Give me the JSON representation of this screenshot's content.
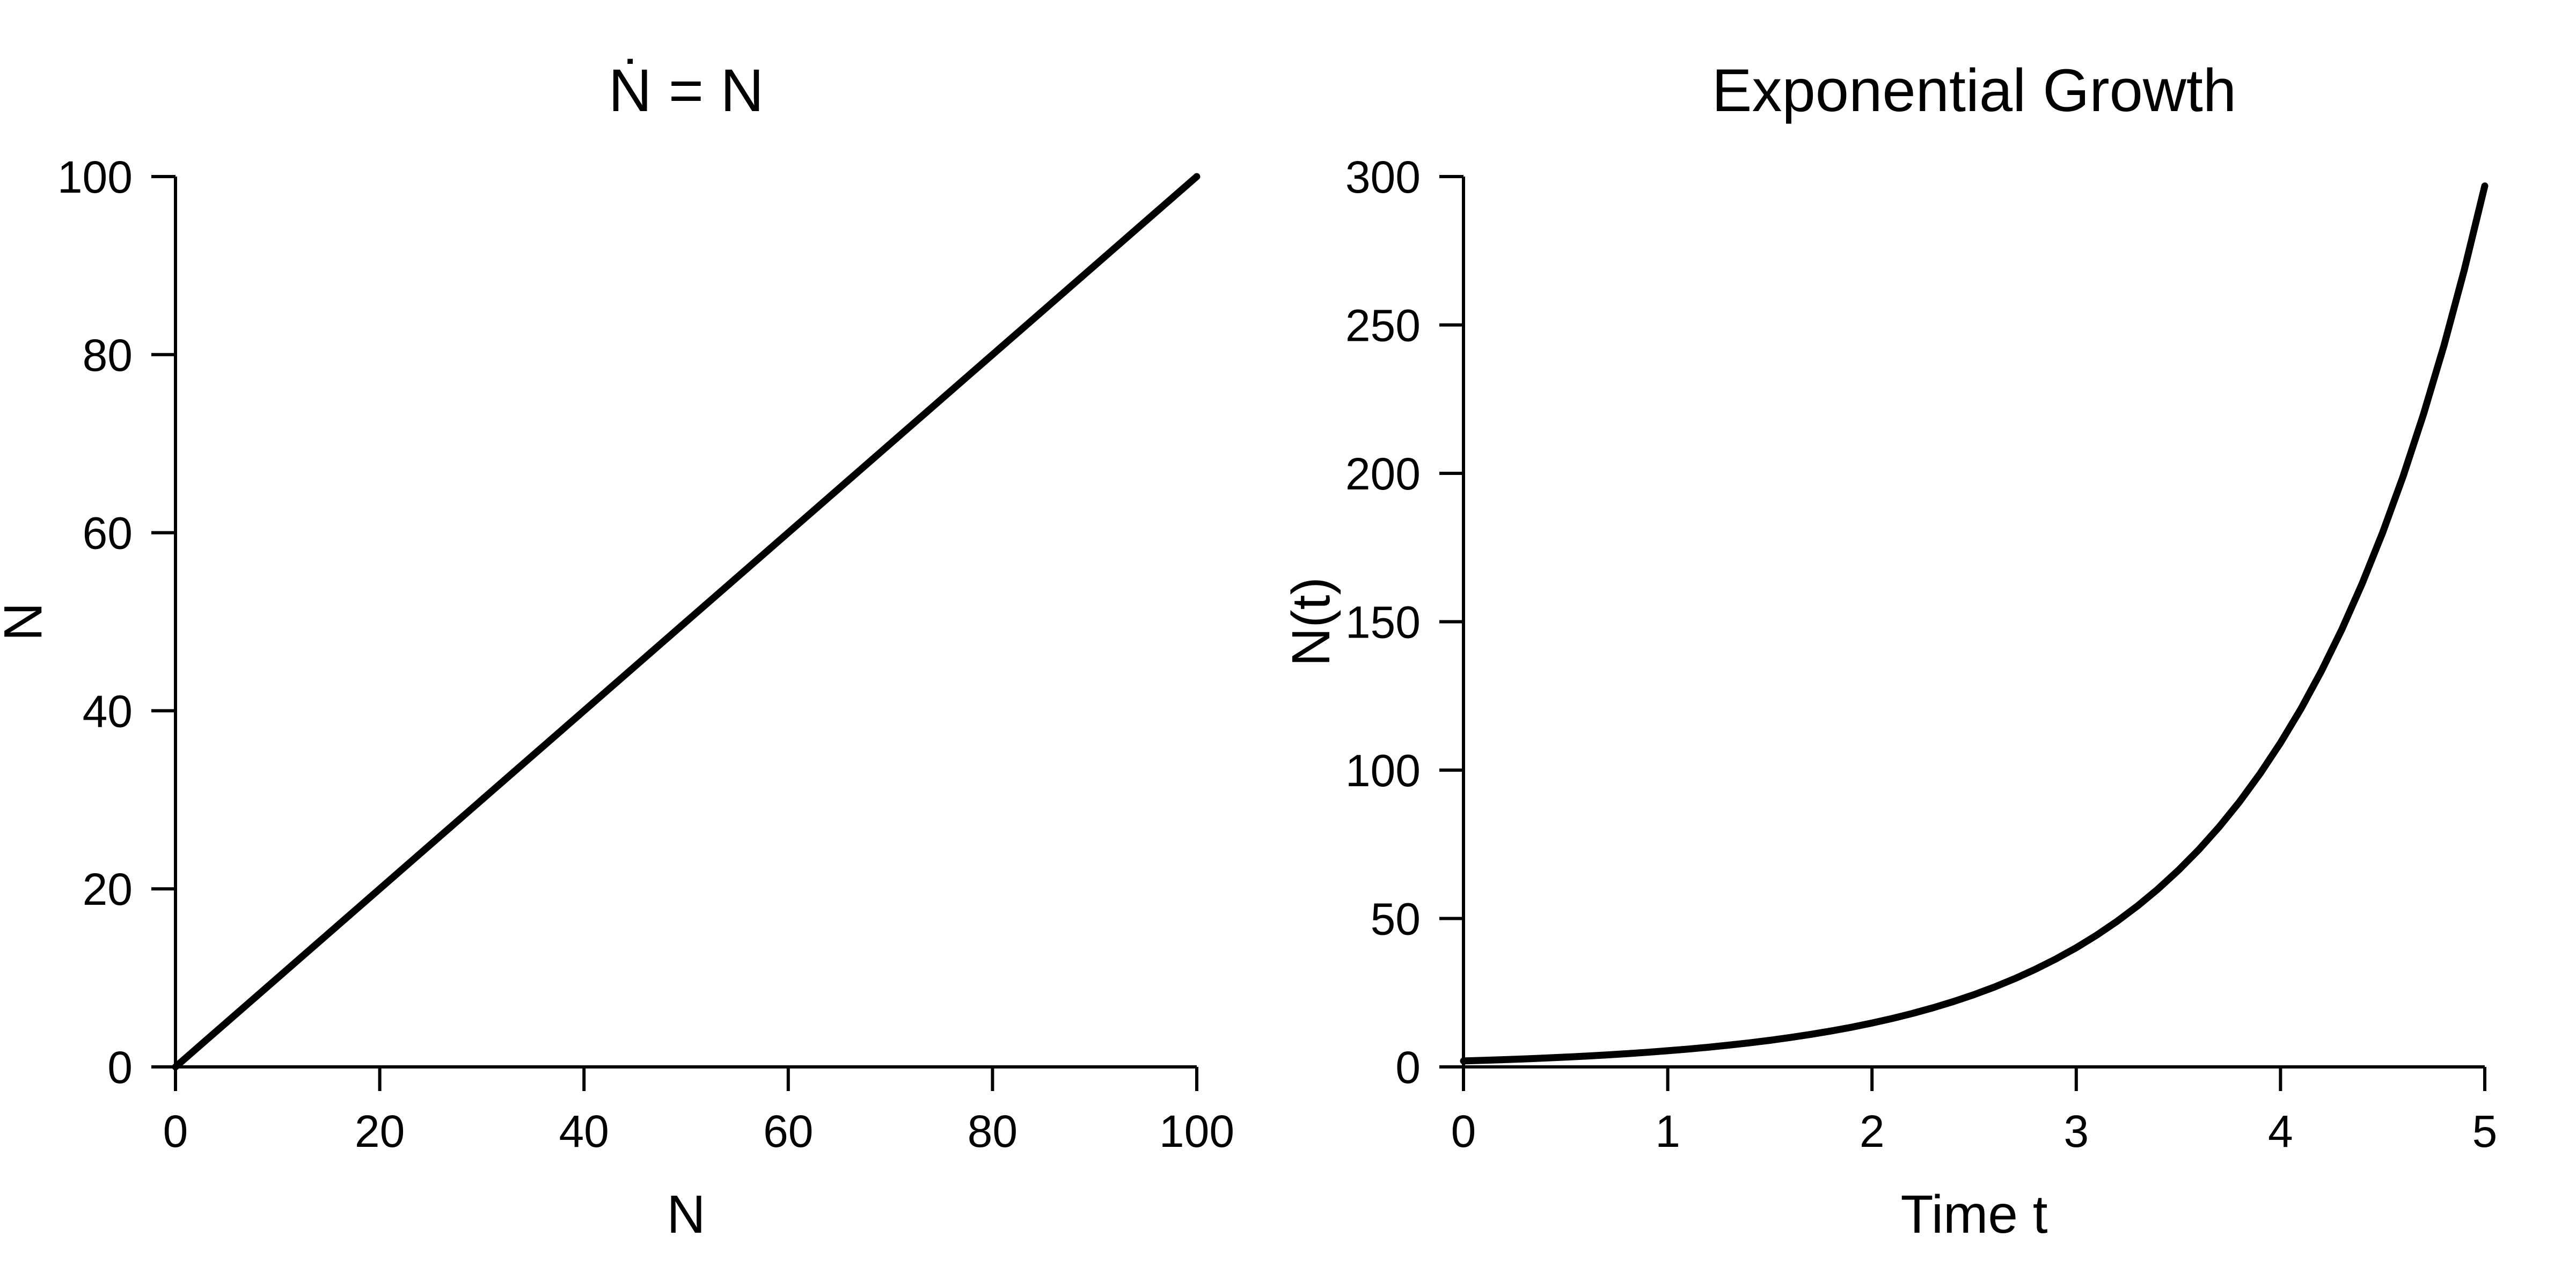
{
  "page": {
    "background": "#ffffff",
    "foreground": "#000000"
  },
  "chart_data": [
    {
      "type": "line",
      "title": "Ṅ = N",
      "xlabel": "N",
      "ylabel": "Ṅ",
      "xlim": [
        0,
        100
      ],
      "ylim": [
        0,
        100
      ],
      "xticks": [
        0,
        20,
        40,
        60,
        80,
        100
      ],
      "yticks": [
        0,
        20,
        40,
        60,
        80,
        100
      ],
      "grid": false,
      "legend": null,
      "color": "#000000",
      "series": [
        {
          "name": "Ndot-equals-N-line",
          "x": [
            0,
            100
          ],
          "y": [
            0,
            100
          ]
        }
      ]
    },
    {
      "type": "line",
      "title": "Exponential Growth",
      "xlabel": "Time t",
      "ylabel": "N(t)",
      "xlim": [
        0,
        5
      ],
      "ylim": [
        0,
        300
      ],
      "xticks": [
        0,
        1,
        2,
        3,
        4,
        5
      ],
      "yticks": [
        0,
        50,
        100,
        150,
        200,
        250,
        300
      ],
      "grid": false,
      "legend": null,
      "color": "#000000",
      "series": [
        {
          "name": "N-of-t-exponential-curve",
          "x": [
            0,
            0.1,
            0.2,
            0.3,
            0.4,
            0.5,
            0.6,
            0.7,
            0.8,
            0.9,
            1.0,
            1.1,
            1.2,
            1.3,
            1.4,
            1.5,
            1.6,
            1.7,
            1.8,
            1.9,
            2.0,
            2.1,
            2.2,
            2.3,
            2.4,
            2.5,
            2.6,
            2.7,
            2.8,
            2.9,
            3.0,
            3.1,
            3.2,
            3.3,
            3.4,
            3.5,
            3.6,
            3.7,
            3.8,
            3.9,
            4.0,
            4.1,
            4.2,
            4.3,
            4.4,
            4.5,
            4.6,
            4.7,
            4.8,
            4.9,
            5.0
          ],
          "y": [
            2.0,
            2.21,
            2.44,
            2.7,
            2.98,
            3.3,
            3.64,
            4.03,
            4.45,
            4.92,
            5.44,
            6.01,
            6.64,
            7.34,
            8.11,
            8.96,
            9.91,
            10.95,
            12.1,
            13.37,
            14.78,
            16.33,
            18.05,
            19.95,
            22.05,
            24.36,
            26.93,
            29.76,
            32.89,
            36.35,
            40.17,
            44.4,
            49.06,
            54.23,
            59.93,
            66.23,
            73.2,
            80.89,
            89.4,
            98.8,
            109.2,
            120.66,
            133.35,
            147.38,
            162.9,
            180.03,
            198.97,
            219.89,
            243.01,
            268.58,
            296.83
          ]
        }
      ]
    }
  ]
}
